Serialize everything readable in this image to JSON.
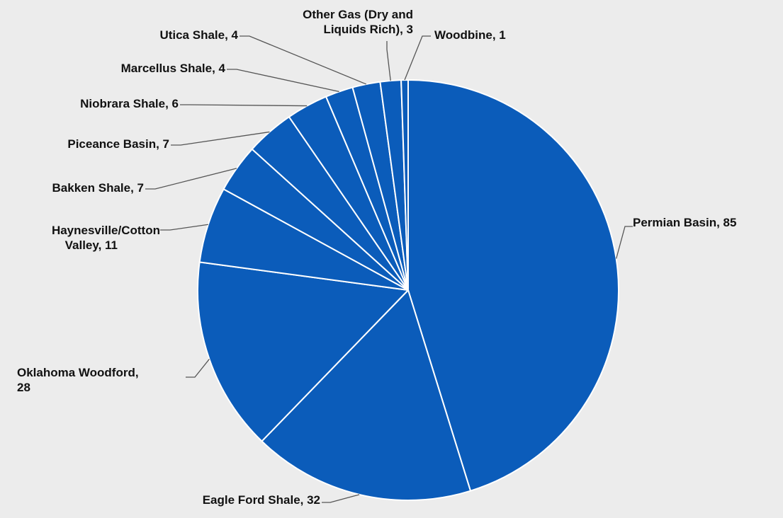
{
  "chart_data": {
    "type": "pie",
    "title": "",
    "slices": [
      {
        "label": "Permian Basin",
        "value": 85
      },
      {
        "label": "Eagle Ford Shale",
        "value": 32
      },
      {
        "label": "Oklahoma Woodford",
        "value": 28
      },
      {
        "label": "Haynesville/Cotton Valley",
        "value": 11
      },
      {
        "label": "Bakken Shale",
        "value": 7
      },
      {
        "label": "Piceance Basin",
        "value": 7
      },
      {
        "label": "Niobrara Shale",
        "value": 6
      },
      {
        "label": "Marcellus Shale",
        "value": 4
      },
      {
        "label": "Utica Shale",
        "value": 4
      },
      {
        "label": "Other Gas (Dry and Liquids Rich)",
        "value": 3
      },
      {
        "label": "Woodbine",
        "value": 1
      }
    ],
    "data_labels": [
      [
        "Permian Basin, 85"
      ],
      [
        "Eagle Ford Shale, 32"
      ],
      [
        "Oklahoma Woodford,",
        "28"
      ],
      [
        "Haynesville/Cotton",
        "Valley, 11"
      ],
      [
        "Bakken Shale, 7"
      ],
      [
        "Piceance Basin, 7"
      ],
      [
        "Niobrara Shale, 6"
      ],
      [
        "Marcellus Shale, 4"
      ],
      [
        "Utica Shale, 4"
      ],
      [
        "Other Gas (Dry and",
        "Liquids Rich), 3"
      ],
      [
        "Woodbine, 1"
      ]
    ],
    "start_angle_deg": 0,
    "direction": "clockwise",
    "slice_color": "#0b5cba",
    "slice_border_color": "#ffffff",
    "leader_line_color": "#555555",
    "label_color": "#111111",
    "legend": "none"
  }
}
